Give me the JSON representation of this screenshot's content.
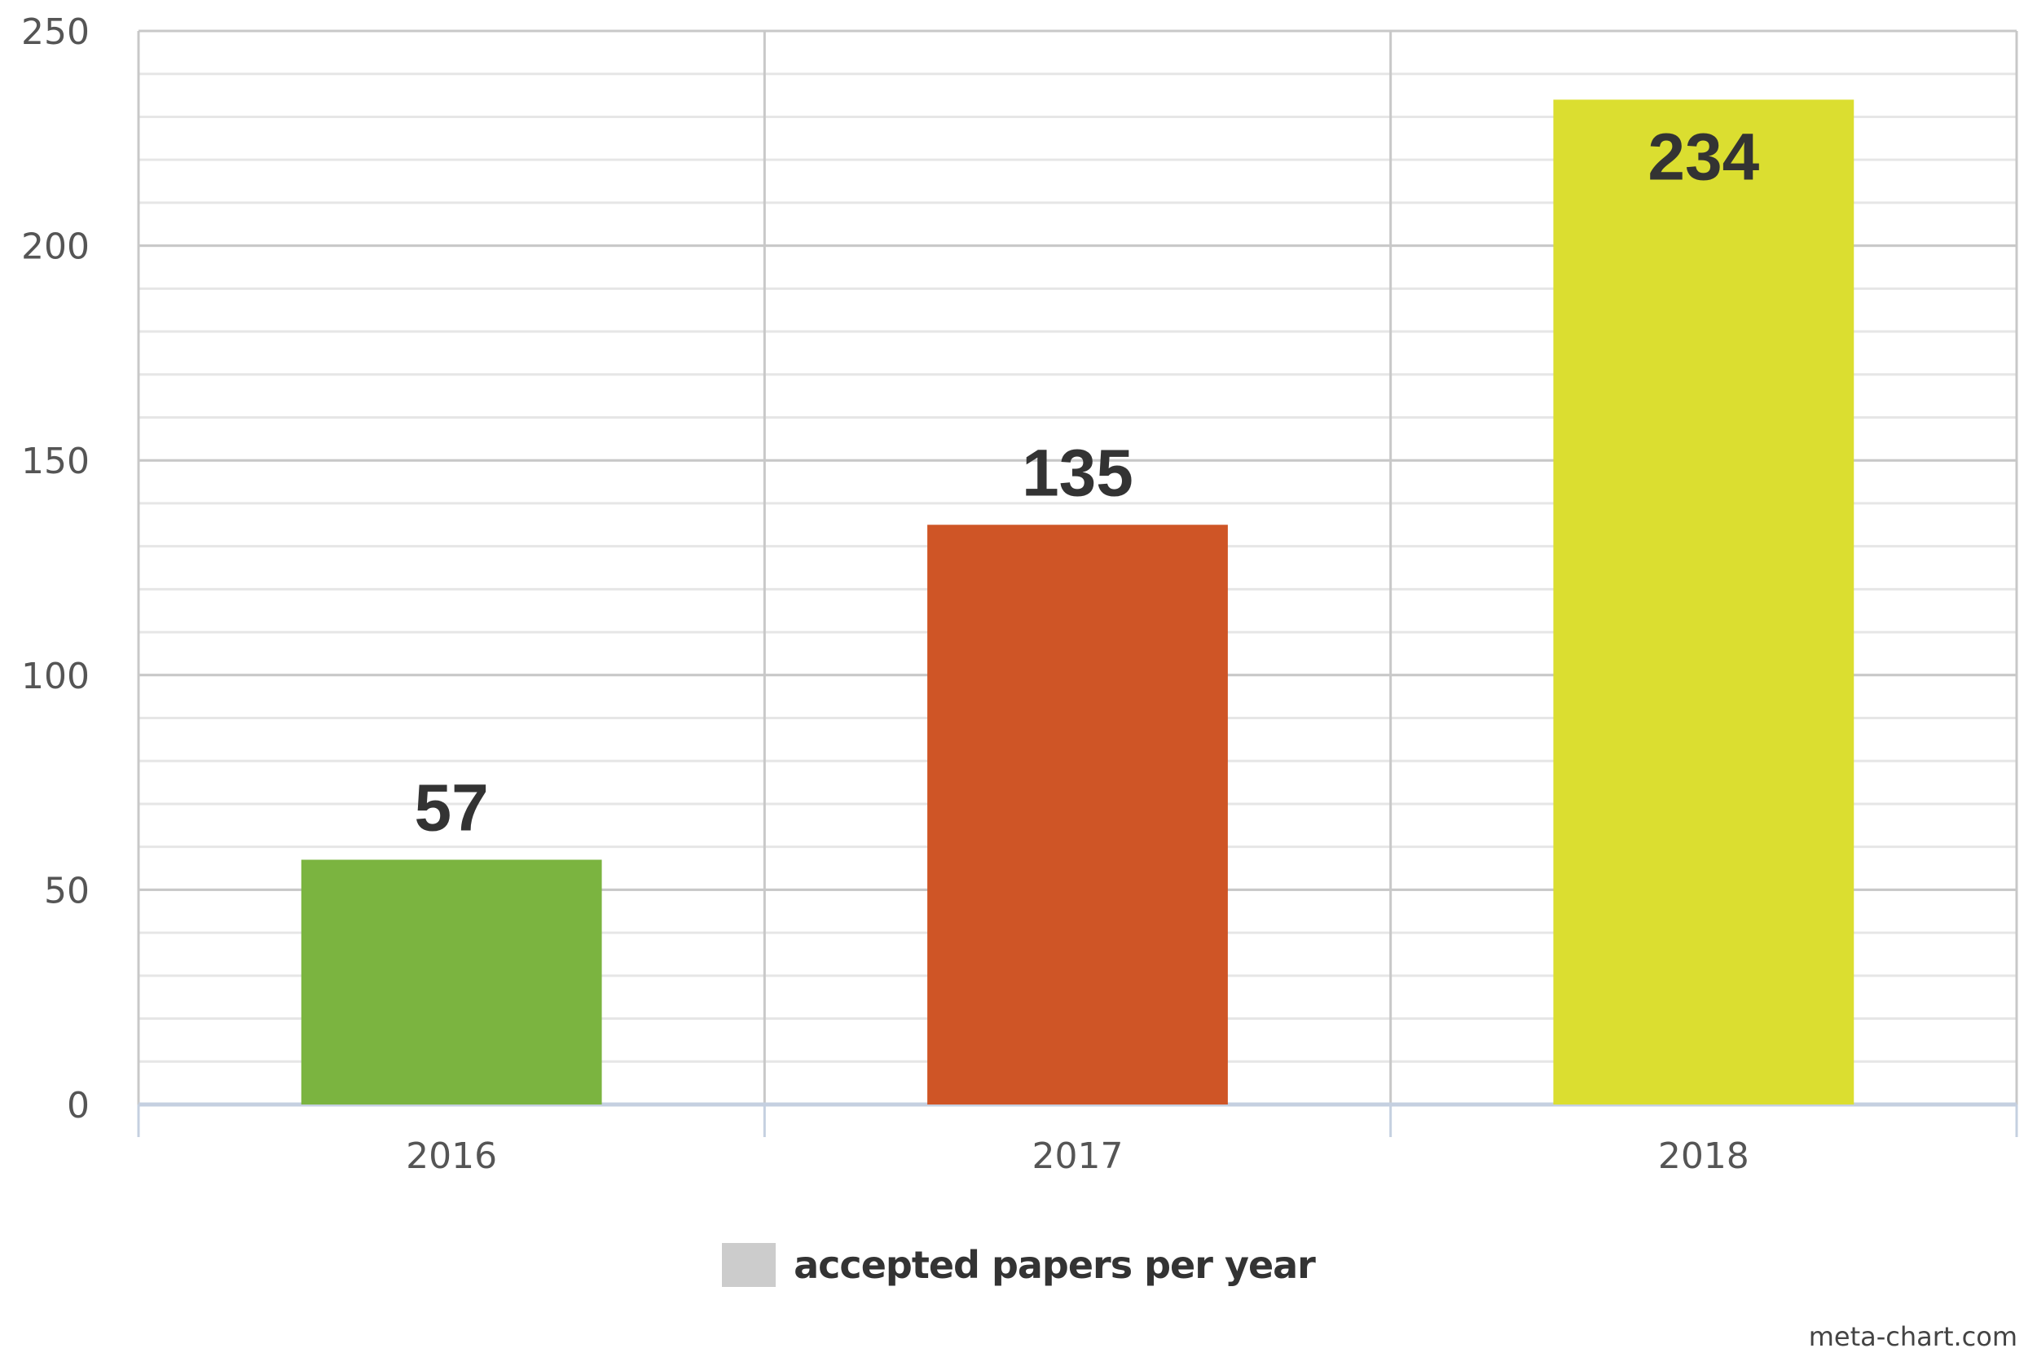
{
  "chart_data": {
    "type": "bar",
    "categories": [
      "2016",
      "2017",
      "2018"
    ],
    "values": [
      57,
      135,
      234
    ],
    "data_labels": [
      "57",
      "135",
      "234"
    ],
    "bar_colors": [
      "#7bb440",
      "#cf5526",
      "#dbde30"
    ],
    "ylim": [
      0,
      250
    ],
    "y_ticks": [
      "0",
      "50",
      "100",
      "150",
      "200",
      "250"
    ],
    "y_minor_step": 10,
    "grid": true,
    "legend": {
      "position": "bottom",
      "label": "accepted papers per year",
      "swatch_color": "#cccccc"
    },
    "title": "",
    "xlabel": "",
    "ylabel": ""
  },
  "credit": "meta-chart.com"
}
